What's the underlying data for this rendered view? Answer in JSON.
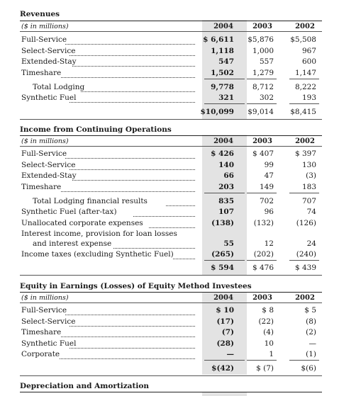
{
  "sections": [
    {
      "title": "Revenues",
      "unit": "($ in millions)",
      "years": [
        "2004",
        "2003",
        "2002"
      ],
      "rows": [
        {
          "label": "Full-Service",
          "v2004": "$ 6,611",
          "v2003": "$5,876",
          "v2002": "$5,508"
        },
        {
          "label": "Select-Service",
          "v2004": "1,118",
          "v2003": "1,000",
          "v2002": "967"
        },
        {
          "label": "Extended-Stay",
          "v2004": "547",
          "v2003": "557",
          "v2002": "600"
        },
        {
          "label": "Timeshare",
          "v2004": "1,502",
          "v2003": "1,279",
          "v2002": "1,147"
        },
        {
          "label": "Total Lodging",
          "v2004": "9,778",
          "v2003": "8,712",
          "v2002": "8,222"
        },
        {
          "label": "Synthetic Fuel",
          "v2004": "321",
          "v2003": "302",
          "v2002": "193"
        }
      ],
      "total": {
        "v2004": "$10,099",
        "v2003": "$9,014",
        "v2002": "$8,415"
      }
    },
    {
      "title": "Income from Continuing Operations",
      "unit": "($ in millions)",
      "years": [
        "2004",
        "2003",
        "2002"
      ],
      "rows": [
        {
          "label": "Full-Service",
          "v2004": "$ 426",
          "v2003": "$ 407",
          "v2002": "$ 397"
        },
        {
          "label": "Select-Service",
          "v2004": "140",
          "v2003": "99",
          "v2002": "130"
        },
        {
          "label": "Extended-Stay",
          "v2004": "66",
          "v2003": "47",
          "v2002": "(3)"
        },
        {
          "label": "Timeshare",
          "v2004": "203",
          "v2003": "149",
          "v2002": "183"
        },
        {
          "label": "Total Lodging financial results",
          "v2004": "835",
          "v2003": "702",
          "v2002": "707"
        },
        {
          "label": "Synthetic Fuel (after-tax)",
          "v2004": "107",
          "v2003": "96",
          "v2002": "74"
        },
        {
          "label": "Unallocated corporate expenses",
          "v2004": "(138)",
          "v2003": "(132)",
          "v2002": "(126)"
        },
        {
          "label": "Interest income, provision for loan losses",
          "label2": "and interest expense",
          "v2004": "55",
          "v2003": "12",
          "v2002": "24"
        },
        {
          "label": "Income taxes (excluding Synthetic Fuel)",
          "v2004": "(265)",
          "v2003": "(202)",
          "v2002": "(240)"
        }
      ],
      "total": {
        "v2004": "$ 594",
        "v2003": "$ 476",
        "v2002": "$ 439"
      }
    },
    {
      "title": "Equity in Earnings (Losses) of Equity Method Investees",
      "unit": "($ in millions)",
      "years": [
        "2004",
        "2003",
        "2002"
      ],
      "rows": [
        {
          "label": "Full-Service",
          "v2004": "$ 10",
          "v2003": "$ 8",
          "v2002": "$ 5"
        },
        {
          "label": "Select-Service",
          "v2004": "(17)",
          "v2003": "(22)",
          "v2002": "(8)"
        },
        {
          "label": "Timeshare",
          "v2004": "(7)",
          "v2003": "(4)",
          "v2002": "(2)"
        },
        {
          "label": "Synthetic Fuel",
          "v2004": "(28)",
          "v2003": "10",
          "v2002": "—"
        },
        {
          "label": "Corporate",
          "v2004": "—",
          "v2003": "1",
          "v2002": "(1)"
        }
      ],
      "total": {
        "v2004": "$(42)",
        "v2003": "$ (7)",
        "v2002": "$(6)"
      }
    },
    {
      "title": "Depreciation and Amortization"
    }
  ]
}
